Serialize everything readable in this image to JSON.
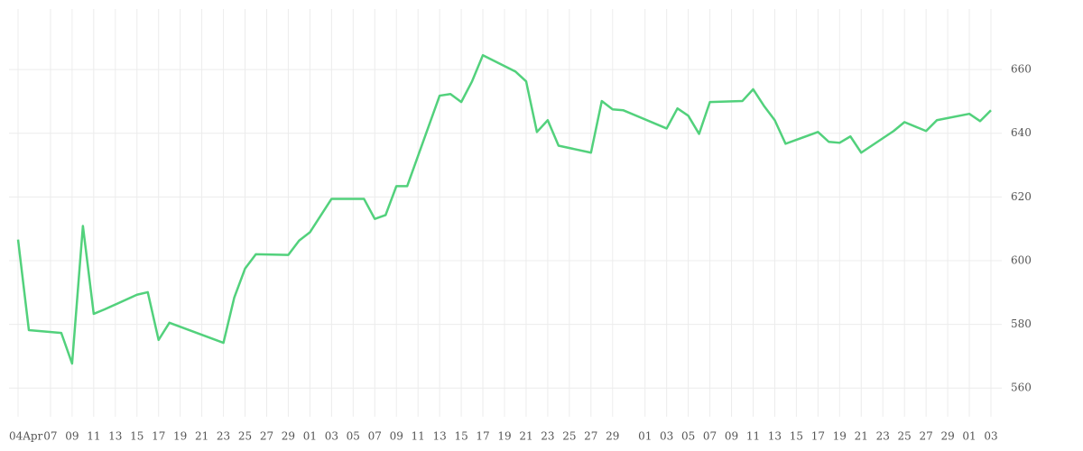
{
  "chart_data": {
    "type": "line",
    "x": [
      0,
      1,
      4,
      5,
      6,
      7,
      8,
      11,
      12,
      13,
      14,
      19,
      20,
      21,
      22,
      25,
      26,
      27,
      29,
      32,
      33,
      34,
      35,
      36,
      39,
      40,
      41,
      42,
      43,
      46,
      47,
      48,
      49,
      50,
      53,
      54,
      55,
      56,
      60,
      61,
      62,
      63,
      64,
      67,
      68,
      69,
      70,
      71,
      74,
      75,
      76,
      77,
      78,
      81,
      82,
      84,
      85,
      88,
      89,
      90
    ],
    "series": [
      {
        "color": "#52d17c",
        "values": [
          606.6,
          578.2,
          577.3,
          567.7,
          610.9,
          583.3,
          584.7,
          589.3,
          590.1,
          575.1,
          580.5,
          574.2,
          588.4,
          597.5,
          602,
          601.8,
          606.3,
          608.9,
          619.4,
          619.4,
          613.1,
          614.3,
          623.4,
          623.4,
          651.8,
          652.3,
          649.8,
          656.3,
          664.5,
          659.4,
          656.3,
          640.4,
          644.1,
          636.1,
          633.9,
          650.1,
          647.5,
          647.2,
          641.5,
          647.8,
          645.5,
          639.8,
          649.8,
          650.1,
          653.8,
          648.6,
          644.1,
          636.7,
          640.4,
          637.3,
          637,
          639,
          633.9,
          640.7,
          643.5,
          640.7,
          644.1,
          646.1,
          643.8,
          647.2
        ]
      }
    ],
    "xlim": [
      0,
      90
    ],
    "xticks": [
      {
        "value": 0,
        "label": "04Apr"
      },
      {
        "value": 3,
        "label": "07"
      },
      {
        "value": 5,
        "label": "09"
      },
      {
        "value": 7,
        "label": "11"
      },
      {
        "value": 9,
        "label": "13"
      },
      {
        "value": 11,
        "label": "15"
      },
      {
        "value": 13,
        "label": "17"
      },
      {
        "value": 15,
        "label": "19"
      },
      {
        "value": 17,
        "label": "21"
      },
      {
        "value": 19,
        "label": "23"
      },
      {
        "value": 21,
        "label": "25"
      },
      {
        "value": 23,
        "label": "27"
      },
      {
        "value": 25,
        "label": "29"
      },
      {
        "value": 27,
        "label": "01"
      },
      {
        "value": 29,
        "label": "03"
      },
      {
        "value": 31,
        "label": "05"
      },
      {
        "value": 33,
        "label": "07"
      },
      {
        "value": 35,
        "label": "09"
      },
      {
        "value": 37,
        "label": "11"
      },
      {
        "value": 39,
        "label": "13"
      },
      {
        "value": 41,
        "label": "15"
      },
      {
        "value": 43,
        "label": "17"
      },
      {
        "value": 45,
        "label": "19"
      },
      {
        "value": 47,
        "label": "21"
      },
      {
        "value": 49,
        "label": "23"
      },
      {
        "value": 51,
        "label": "25"
      },
      {
        "value": 53,
        "label": "27"
      },
      {
        "value": 55,
        "label": "29"
      },
      {
        "value": 58,
        "label": "01"
      },
      {
        "value": 60,
        "label": "03"
      },
      {
        "value": 62,
        "label": "05"
      },
      {
        "value": 64,
        "label": "07"
      },
      {
        "value": 66,
        "label": "09"
      },
      {
        "value": 68,
        "label": "11"
      },
      {
        "value": 70,
        "label": "13"
      },
      {
        "value": 72,
        "label": "15"
      },
      {
        "value": 74,
        "label": "17"
      },
      {
        "value": 76,
        "label": "19"
      },
      {
        "value": 78,
        "label": "21"
      },
      {
        "value": 80,
        "label": "23"
      },
      {
        "value": 82,
        "label": "25"
      },
      {
        "value": 84,
        "label": "27"
      },
      {
        "value": 86,
        "label": "29"
      },
      {
        "value": 88,
        "label": "01"
      },
      {
        "value": 90,
        "label": "03"
      }
    ],
    "ylim": [
      551,
      679
    ],
    "yticks": [
      560,
      580,
      600,
      620,
      640,
      660
    ],
    "grid": true
  }
}
